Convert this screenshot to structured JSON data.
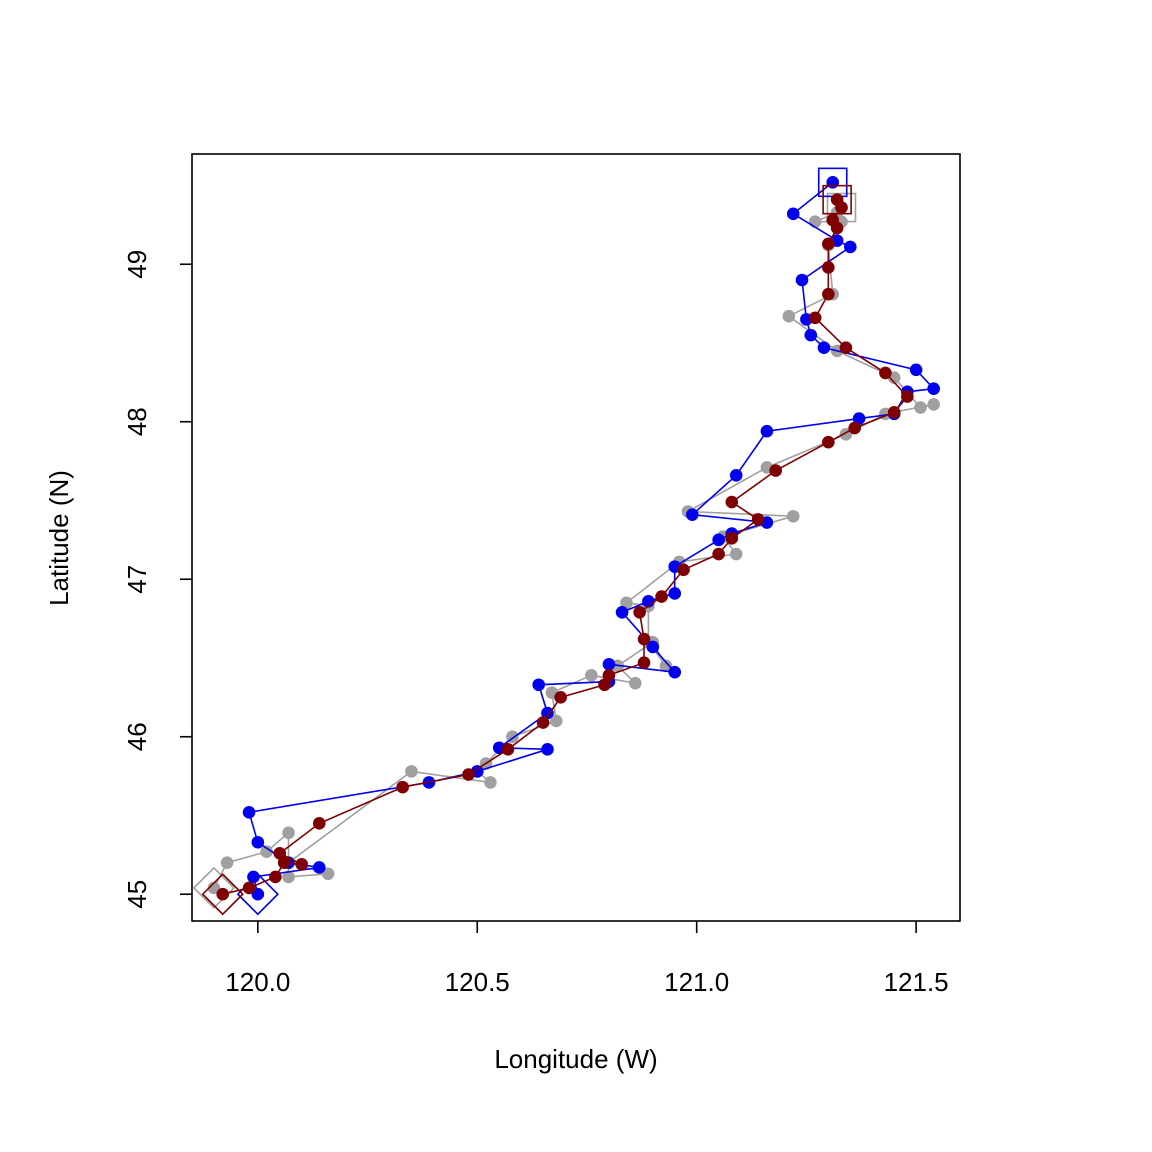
{
  "chart_data": {
    "type": "line",
    "title": "",
    "xlabel": "Longitude (W)",
    "ylabel": "Latitude (N)",
    "xlim": [
      119.85,
      121.6
    ],
    "ylim": [
      44.83,
      49.7
    ],
    "x_ticks": [
      "120.0",
      "120.5",
      "121.0",
      "121.5"
    ],
    "y_ticks": [
      "45",
      "46",
      "47",
      "48",
      "49"
    ],
    "grid": false,
    "legend": "none",
    "series": [
      {
        "color": "#a0a0a0",
        "marker": "circle",
        "start_marker": "diamond",
        "end_marker": "square",
        "points": [
          [
            119.9,
            45.04
          ],
          [
            119.93,
            45.2
          ],
          [
            120.02,
            45.27
          ],
          [
            120.07,
            45.39
          ],
          [
            120.07,
            45.11
          ],
          [
            120.16,
            45.13
          ],
          [
            120.07,
            45.2
          ],
          [
            120.35,
            45.78
          ],
          [
            120.53,
            45.71
          ],
          [
            120.5,
            45.78
          ],
          [
            120.52,
            45.83
          ],
          [
            120.58,
            46.0
          ],
          [
            120.68,
            46.1
          ],
          [
            120.67,
            46.28
          ],
          [
            120.76,
            46.39
          ],
          [
            120.86,
            46.34
          ],
          [
            120.82,
            46.45
          ],
          [
            120.9,
            46.6
          ],
          [
            120.93,
            46.45
          ],
          [
            120.89,
            46.6
          ],
          [
            120.89,
            46.83
          ],
          [
            120.84,
            46.85
          ],
          [
            120.96,
            47.11
          ],
          [
            121.09,
            47.16
          ],
          [
            121.06,
            47.27
          ],
          [
            121.22,
            47.4
          ],
          [
            120.98,
            47.43
          ],
          [
            121.16,
            47.71
          ],
          [
            121.34,
            47.92
          ],
          [
            121.43,
            48.05
          ],
          [
            121.54,
            48.11
          ],
          [
            121.51,
            48.09
          ],
          [
            121.45,
            48.28
          ],
          [
            121.32,
            48.45
          ],
          [
            121.21,
            48.67
          ],
          [
            121.31,
            48.81
          ],
          [
            121.3,
            49.12
          ],
          [
            121.33,
            49.27
          ],
          [
            121.27,
            49.27
          ],
          [
            121.32,
            49.33
          ],
          [
            121.33,
            49.36
          ]
        ]
      },
      {
        "color": "#0000ee",
        "marker": "circle",
        "start_marker": "diamond",
        "end_marker": "square",
        "points": [
          [
            120.0,
            45.0
          ],
          [
            119.99,
            45.11
          ],
          [
            120.14,
            45.17
          ],
          [
            120.07,
            45.2
          ],
          [
            120.0,
            45.33
          ],
          [
            119.98,
            45.52
          ],
          [
            120.39,
            45.71
          ],
          [
            120.5,
            45.78
          ],
          [
            120.66,
            45.92
          ],
          [
            120.55,
            45.93
          ],
          [
            120.66,
            46.15
          ],
          [
            120.64,
            46.33
          ],
          [
            120.8,
            46.35
          ],
          [
            120.8,
            46.46
          ],
          [
            120.95,
            46.41
          ],
          [
            120.9,
            46.57
          ],
          [
            120.83,
            46.79
          ],
          [
            120.89,
            46.86
          ],
          [
            120.95,
            46.91
          ],
          [
            120.95,
            47.08
          ],
          [
            121.05,
            47.25
          ],
          [
            121.08,
            47.29
          ],
          [
            121.16,
            47.36
          ],
          [
            120.99,
            47.41
          ],
          [
            121.09,
            47.66
          ],
          [
            121.16,
            47.94
          ],
          [
            121.37,
            48.02
          ],
          [
            121.45,
            48.05
          ],
          [
            121.48,
            48.19
          ],
          [
            121.54,
            48.21
          ],
          [
            121.5,
            48.33
          ],
          [
            121.29,
            48.47
          ],
          [
            121.26,
            48.55
          ],
          [
            121.25,
            48.65
          ],
          [
            121.24,
            48.9
          ],
          [
            121.35,
            49.11
          ],
          [
            121.32,
            49.15
          ],
          [
            121.22,
            49.32
          ],
          [
            121.31,
            49.52
          ]
        ]
      },
      {
        "color": "#7f0000",
        "marker": "circle",
        "start_marker": "diamond",
        "end_marker": "square",
        "points": [
          [
            119.92,
            45.0
          ],
          [
            119.98,
            45.04
          ],
          [
            120.04,
            45.11
          ],
          [
            120.06,
            45.2
          ],
          [
            120.1,
            45.19
          ],
          [
            120.05,
            45.26
          ],
          [
            120.14,
            45.45
          ],
          [
            120.33,
            45.68
          ],
          [
            120.48,
            45.76
          ],
          [
            120.57,
            45.92
          ],
          [
            120.65,
            46.09
          ],
          [
            120.69,
            46.25
          ],
          [
            120.79,
            46.33
          ],
          [
            120.8,
            46.39
          ],
          [
            120.88,
            46.47
          ],
          [
            120.88,
            46.62
          ],
          [
            120.87,
            46.79
          ],
          [
            120.92,
            46.89
          ],
          [
            120.97,
            47.06
          ],
          [
            121.05,
            47.16
          ],
          [
            121.08,
            47.26
          ],
          [
            121.14,
            47.38
          ],
          [
            121.08,
            47.49
          ],
          [
            121.18,
            47.69
          ],
          [
            121.3,
            47.87
          ],
          [
            121.36,
            47.96
          ],
          [
            121.45,
            48.06
          ],
          [
            121.48,
            48.16
          ],
          [
            121.43,
            48.31
          ],
          [
            121.34,
            48.47
          ],
          [
            121.27,
            48.66
          ],
          [
            121.3,
            48.81
          ],
          [
            121.3,
            48.98
          ],
          [
            121.3,
            49.13
          ],
          [
            121.32,
            49.23
          ],
          [
            121.31,
            49.28
          ],
          [
            121.33,
            49.36
          ],
          [
            121.32,
            49.41
          ]
        ]
      }
    ]
  }
}
